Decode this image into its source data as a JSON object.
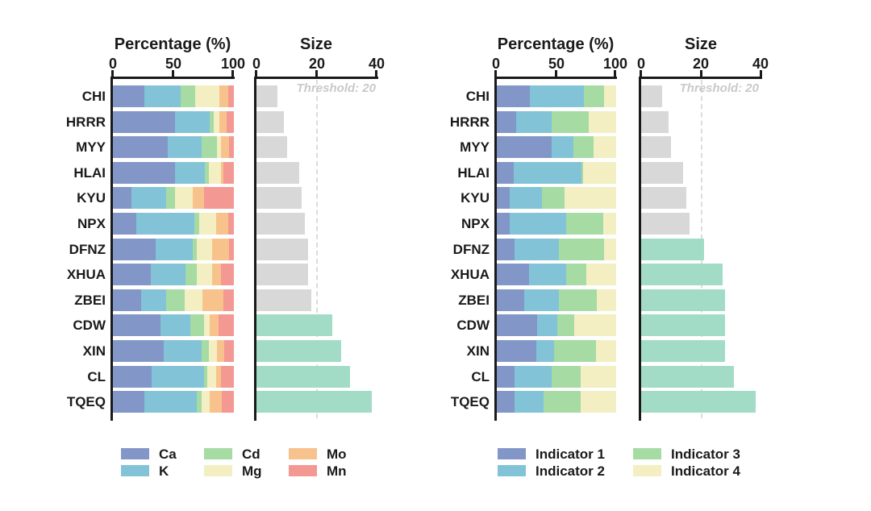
{
  "figure": {
    "background": "#ffffff"
  },
  "categories": [
    "CHI",
    "HRRR",
    "MYY",
    "HLAI",
    "KYU",
    "NPX",
    "DFNZ",
    "XHUA",
    "ZBEI",
    "CDW",
    "XIN",
    "CL",
    "TQEQ"
  ],
  "colors": {
    "blue": "#8297C8",
    "teal": "#82C3D7",
    "green": "#A6DBA3",
    "yellow": "#F3EFC2",
    "orange": "#F8C28C",
    "red": "#F49893",
    "size_below_threshold": "#D8D8D8",
    "size_above_threshold": "#A2DCC6",
    "axis": "#1A1A1A",
    "threshold_line": "#DCDCDC",
    "threshold_text": "#C9C9C9"
  },
  "chart_data": [
    {
      "id": "left_percentage",
      "type": "bar",
      "variant": "stacked-horizontal",
      "title": "Percentage (%)",
      "xticks": [
        "0",
        "50",
        "100"
      ],
      "xlim": [
        0,
        100
      ],
      "categories": [
        "CHI",
        "HRRR",
        "MYY",
        "HLAI",
        "KYU",
        "NPX",
        "DFNZ",
        "XHUA",
        "ZBEI",
        "CDW",
        "XIN",
        "CL",
        "TQEQ"
      ],
      "series": [
        {
          "name": "Ca",
          "color": "#8297C8",
          "values": [
            26,
            51,
            45,
            51,
            15,
            19,
            35,
            31,
            23,
            39,
            42,
            32,
            26
          ]
        },
        {
          "name": "K",
          "color": "#82C3D7",
          "values": [
            30,
            29,
            28,
            25,
            29,
            48,
            31,
            29,
            21,
            25,
            31,
            43,
            43
          ]
        },
        {
          "name": "Cd",
          "color": "#A6DBA3",
          "values": [
            12,
            3,
            13,
            3,
            7,
            4,
            3,
            9,
            15,
            11,
            6,
            3,
            4
          ]
        },
        {
          "name": "Mg",
          "color": "#F3EFC2",
          "values": [
            20,
            5,
            3,
            10,
            15,
            14,
            13,
            13,
            15,
            5,
            7,
            7,
            7
          ]
        },
        {
          "name": "Mo",
          "color": "#F8C28C",
          "values": [
            7,
            6,
            7,
            2,
            9,
            10,
            14,
            7,
            17,
            7,
            6,
            4,
            10
          ]
        },
        {
          "name": "Mn",
          "color": "#F49893",
          "values": [
            5,
            6,
            4,
            9,
            25,
            5,
            4,
            11,
            9,
            13,
            8,
            11,
            10
          ]
        }
      ]
    },
    {
      "id": "left_size",
      "type": "bar",
      "variant": "horizontal",
      "title": "Size",
      "xticks": [
        "0",
        "20",
        "40"
      ],
      "xlim": [
        0,
        40
      ],
      "threshold": 20,
      "threshold_label": "Threshold: 20",
      "categories": [
        "CHI",
        "HRRR",
        "MYY",
        "HLAI",
        "KYU",
        "NPX",
        "DFNZ",
        "XHUA",
        "ZBEI",
        "CDW",
        "XIN",
        "CL",
        "TQEQ"
      ],
      "values": [
        7,
        9,
        10,
        14,
        15,
        16,
        17,
        17,
        18,
        25,
        28,
        31,
        38
      ],
      "color_below": "#D8D8D8",
      "color_above": "#A2DCC6"
    },
    {
      "id": "right_percentage",
      "type": "bar",
      "variant": "stacked-horizontal",
      "title": "Percentage (%)",
      "xticks": [
        "0",
        "50",
        "100"
      ],
      "xlim": [
        0,
        100
      ],
      "categories": [
        "CHI",
        "HRRR",
        "MYY",
        "HLAI",
        "KYU",
        "NPX",
        "DFNZ",
        "XHUA",
        "ZBEI",
        "CDW",
        "XIN",
        "CL",
        "TQEQ"
      ],
      "series": [
        {
          "name": "Indicator 1",
          "color": "#8297C8",
          "values": [
            28,
            16,
            46,
            14,
            11,
            11,
            15,
            27,
            23,
            34,
            33,
            15,
            15
          ]
        },
        {
          "name": "Indicator 2",
          "color": "#82C3D7",
          "values": [
            45,
            30,
            18,
            57,
            27,
            47,
            37,
            31,
            29,
            17,
            15,
            31,
            24
          ]
        },
        {
          "name": "Indicator 3",
          "color": "#A6DBA3",
          "values": [
            17,
            31,
            17,
            1,
            19,
            31,
            38,
            17,
            32,
            14,
            35,
            24,
            31
          ]
        },
        {
          "name": "Indicator 4",
          "color": "#F3EFC2",
          "values": [
            10,
            23,
            19,
            28,
            43,
            11,
            10,
            25,
            16,
            35,
            17,
            30,
            30
          ]
        }
      ]
    },
    {
      "id": "right_size",
      "type": "bar",
      "variant": "horizontal",
      "title": "Size",
      "xticks": [
        "0",
        "20",
        "40"
      ],
      "xlim": [
        0,
        40
      ],
      "threshold": 20,
      "threshold_label": "Threshold: 20",
      "categories": [
        "CHI",
        "HRRR",
        "MYY",
        "HLAI",
        "KYU",
        "NPX",
        "DFNZ",
        "XHUA",
        "ZBEI",
        "CDW",
        "XIN",
        "CL",
        "TQEQ"
      ],
      "values": [
        7,
        9,
        10,
        14,
        15,
        16,
        21,
        27,
        28,
        28,
        28,
        31,
        38
      ],
      "color_below": "#D8D8D8",
      "color_above": "#A2DCC6"
    }
  ],
  "legends": {
    "left": {
      "items": [
        {
          "label": "Ca",
          "color": "#8297C8"
        },
        {
          "label": "K",
          "color": "#82C3D7"
        },
        {
          "label": "Cd",
          "color": "#A6DBA3"
        },
        {
          "label": "Mg",
          "color": "#F3EFC2"
        },
        {
          "label": "Mo",
          "color": "#F8C28C"
        },
        {
          "label": "Mn",
          "color": "#F49893"
        }
      ]
    },
    "right": {
      "items": [
        {
          "label": "Indicator 1",
          "color": "#8297C8"
        },
        {
          "label": "Indicator 2",
          "color": "#82C3D7"
        },
        {
          "label": "Indicator 3",
          "color": "#A6DBA3"
        },
        {
          "label": "Indicator 4",
          "color": "#F3EFC2"
        }
      ]
    }
  }
}
